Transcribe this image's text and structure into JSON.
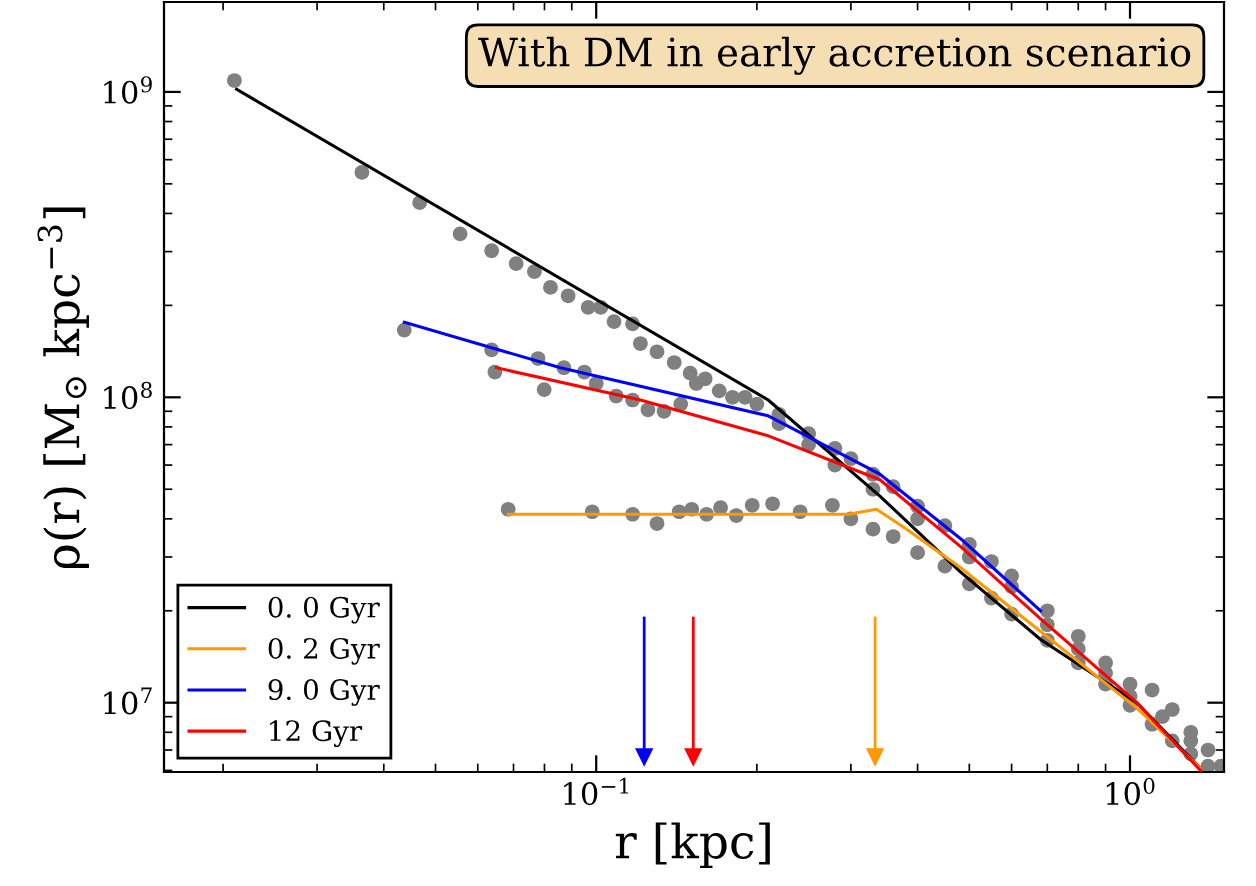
{
  "chart_data": {
    "type": "line",
    "xlabel": "r [kpc]",
    "ylabel": "ρ(r) [M$_{⊙}$ kpc$^{−3}$]",
    "log": "xy",
    "xlim": [
      0.0155,
      1.5
    ],
    "ylim": [
      5930000.0,
      1970000000.0
    ],
    "xticks": [
      {
        "value": 0.1,
        "label": "10$^{−1}$"
      },
      {
        "value": 1,
        "label": "10$^{0}$"
      }
    ],
    "yticks": [
      {
        "value": 10000000,
        "label": "10$^{7}$"
      },
      {
        "value": 100000000,
        "label": "10$^{8}$"
      },
      {
        "value": 1000000000,
        "label": "10$^{9}$"
      }
    ],
    "grid": false,
    "legend": "bottom left",
    "marker": "none",
    "line_style": "solid",
    "annotations": [
      "With DM in early accretion scenario"
    ],
    "ref_lines": [
      {
        "axis": "x",
        "value": 0.123,
        "label": null,
        "color": "#0000ff"
      },
      {
        "axis": "x",
        "value": 0.152,
        "label": null,
        "color": "#ff0000"
      },
      {
        "axis": "x",
        "value": 0.333,
        "label": null,
        "color": "#ff9900"
      }
    ],
    "series": [
      {
        "type": "scatter",
        "color": "#808080",
        "marker": "circle",
        "x": [
          0.021,
          0.0364,
          0.0467,
          0.0556,
          0.0637,
          0.0708,
          0.0766,
          0.0821,
          0.0886,
          0.0966,
          0.102,
          0.108,
          0.117,
          0.121,
          0.13,
          0.0437,
          0.0637,
          0.0646,
          0.0778,
          0.0799,
          0.087,
          0.095,
          0.1,
          0.109,
          0.117,
          0.125,
          0.134,
          0.144,
          0.154,
          0.0684,
          0.0983,
          0.117,
          0.13,
          0.143,
          0.151,
          0.161,
          0.171,
          0.183,
          0.196,
          0.214,
          0.241,
          0.277,
          0.14,
          0.15,
          0.16,
          0.17,
          0.18,
          0.19,
          0.2,
          0.22,
          0.25,
          0.28,
          0.3,
          0.33,
          0.36,
          0.4,
          0.45,
          0.5,
          0.55,
          0.6,
          0.7,
          0.8,
          0.9,
          1.0,
          1.1,
          1.2,
          1.3,
          1.4,
          1.48,
          0.3,
          0.33,
          0.36,
          0.4,
          0.45,
          0.5,
          0.55,
          0.6,
          0.7,
          0.8,
          0.9,
          1.0,
          1.1,
          1.2,
          1.3,
          1.4,
          0.22,
          0.25,
          0.28,
          0.33,
          0.4,
          0.5,
          0.6,
          0.7,
          0.8,
          0.9,
          1.0,
          1.15,
          1.3
        ],
        "values": [
          1090000000.0,
          545000000.0,
          434000000.0,
          343000000.0,
          302000000.0,
          274000000.0,
          258000000.0,
          229000000.0,
          215000000.0,
          197000000.0,
          197000000.0,
          177000000.0,
          174000000.0,
          150000000.0,
          141000000.0,
          166000000.0,
          143000000.0,
          121000000.0,
          134000000.0,
          106000000.0,
          125000000.0,
          121000000.0,
          111000000.0,
          101000000.0,
          98000000.0,
          91000000.0,
          90000000.0,
          95000000.0,
          111000000.0,
          43000000.0,
          42200000.0,
          41400000.0,
          38600000.0,
          42200000.0,
          43000000.0,
          41400000.0,
          43500000.0,
          41000000.0,
          44300000.0,
          44800000.0,
          42200000.0,
          44300000.0,
          130000000.0,
          120000000.0,
          115000000.0,
          105000000.0,
          100000000.0,
          100000000.0,
          95000000.0,
          88000000.0,
          76000000.0,
          68000000.0,
          63000000.0,
          56000000.0,
          51000000.0,
          44000000.0,
          38000000.0,
          33000000.0,
          29000000.0,
          26000000.0,
          20000000.0,
          16500000.0,
          13500000.0,
          11500000.0,
          11000000.0,
          9500000.0,
          8000000.0,
          7000000.0,
          6200000.0,
          40000000.0,
          37000000.0,
          35000000.0,
          31000000.0,
          28000000.0,
          24500000.0,
          22000000.0,
          19500000.0,
          16000000.0,
          13500000.0,
          11500000.0,
          9800000.0,
          8500000.0,
          7500000.0,
          6800000.0,
          6200000.0,
          82000000.0,
          70000000.0,
          60000000.0,
          50000000.0,
          40000000.0,
          30000000.0,
          24000000.0,
          18000000.0,
          15000000.0,
          12500000.0,
          10500000.0,
          9000000.0,
          7500000.0
        ]
      },
      {
        "name": "0. 0 Gyr",
        "color": "#000000",
        "x": [
          0.0212,
          0.21,
          0.34,
          0.481,
          0.68,
          1.03,
          1.355
        ],
        "values": [
          1020000000.0,
          98000000.0,
          47500000.0,
          26800000.0,
          16100000.0,
          10000000.0,
          6100000.0
        ]
      },
      {
        "name": "0. 2 Gyr",
        "color": "#ff9900",
        "x": [
          0.0684,
          0.297,
          0.335,
          0.378,
          0.481,
          0.68,
          1.03,
          1.355
        ],
        "values": [
          41400000.0,
          41400000.0,
          43000000.0,
          37400000.0,
          27700000.0,
          17100000.0,
          9600000.0,
          6100000.0
        ]
      },
      {
        "name": "9. 0 Gyr",
        "color": "#0000ff",
        "x": [
          0.0437,
          0.0857,
          0.21,
          0.34,
          0.481,
          0.68
        ],
        "values": [
          176000000.0,
          125000000.0,
          87000000.0,
          56000000.0,
          34500000.0,
          20000000.0
        ]
      },
      {
        "name": "12 Gyr",
        "color": "#ff0000",
        "x": [
          0.065,
          0.121,
          0.21,
          0.34,
          0.481,
          0.68,
          1.03,
          1.355
        ],
        "values": [
          125000000.0,
          98000000.0,
          74800000.0,
          53700000.0,
          32500000.0,
          18800000.0,
          10000000.0,
          6000000.0
        ]
      }
    ]
  }
}
